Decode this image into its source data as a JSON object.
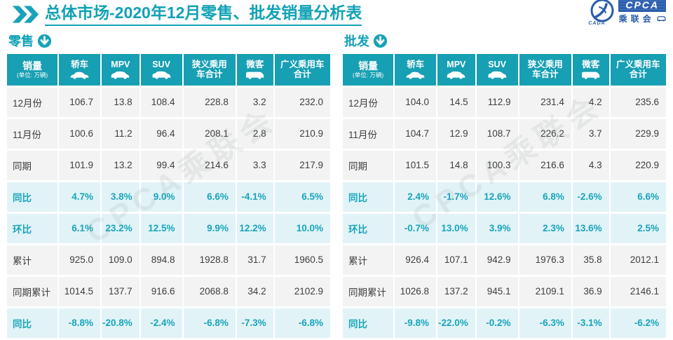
{
  "header": {
    "title_bold": "总体市场",
    "title_rest": "-2020年12月零售、批发销量分析表"
  },
  "logo": {
    "cpca": "CPCA",
    "cada": "CADA",
    "association": "乘联会"
  },
  "watermark_text": "CPCA乘联会",
  "table_meta": {
    "volume_label": "销量",
    "volume_unit": "(单位: 万辆)",
    "columns": [
      {
        "label": "轿车",
        "icon": "sedan-icon"
      },
      {
        "label": "MPV",
        "icon": "mpv-icon"
      },
      {
        "label": "SUV",
        "icon": "suv-icon"
      },
      {
        "label": "狭义乘用车合计",
        "icon": null
      },
      {
        "label": "微客",
        "icon": "minibus-icon"
      },
      {
        "label": "广义乘用车合计",
        "icon": null
      }
    ]
  },
  "chart_data": [
    {
      "type": "table",
      "key": "retail",
      "section_label": "零售",
      "rows": [
        {
          "label": "12月份",
          "kind": "num",
          "values": [
            "106.7",
            "13.8",
            "108.4",
            "228.8",
            "3.2",
            "232.0"
          ]
        },
        {
          "label": "11月份",
          "kind": "num",
          "values": [
            "100.6",
            "11.2",
            "96.4",
            "208.1",
            "2.8",
            "210.9"
          ]
        },
        {
          "label": "同期",
          "kind": "num",
          "values": [
            "101.9",
            "13.2",
            "99.4",
            "214.6",
            "3.3",
            "217.9"
          ]
        },
        {
          "label": "同比",
          "kind": "pct",
          "values": [
            "4.7%",
            "3.8%",
            "9.0%",
            "6.6%",
            "-4.1%",
            "6.5%"
          ]
        },
        {
          "label": "环比",
          "kind": "pct",
          "values": [
            "6.1%",
            "23.2%",
            "12.5%",
            "9.9%",
            "12.2%",
            "10.0%"
          ]
        },
        {
          "label": "累计",
          "kind": "num",
          "values": [
            "925.0",
            "109.0",
            "894.8",
            "1928.8",
            "31.7",
            "1960.5"
          ]
        },
        {
          "label": "同期累计",
          "kind": "num",
          "values": [
            "1014.5",
            "137.7",
            "916.6",
            "2068.8",
            "34.2",
            "2102.9"
          ]
        },
        {
          "label": "同比",
          "kind": "pct",
          "values": [
            "-8.8%",
            "-20.8%",
            "-2.4%",
            "-6.8%",
            "-7.3%",
            "-6.8%"
          ]
        }
      ]
    },
    {
      "type": "table",
      "key": "wholesale",
      "section_label": "批发",
      "rows": [
        {
          "label": "12月份",
          "kind": "num",
          "values": [
            "104.0",
            "14.5",
            "112.9",
            "231.4",
            "4.2",
            "235.6"
          ]
        },
        {
          "label": "11月份",
          "kind": "num",
          "values": [
            "104.7",
            "12.9",
            "108.7",
            "226.2",
            "3.7",
            "229.9"
          ]
        },
        {
          "label": "同期",
          "kind": "num",
          "values": [
            "101.5",
            "14.8",
            "100.3",
            "216.6",
            "4.3",
            "220.9"
          ]
        },
        {
          "label": "同比",
          "kind": "pct",
          "values": [
            "2.4%",
            "-1.7%",
            "12.6%",
            "6.8%",
            "-2.6%",
            "6.6%"
          ]
        },
        {
          "label": "环比",
          "kind": "pct",
          "values": [
            "-0.7%",
            "13.0%",
            "3.9%",
            "2.3%",
            "13.6%",
            "2.5%"
          ]
        },
        {
          "label": "累计",
          "kind": "num",
          "values": [
            "926.4",
            "107.1",
            "942.9",
            "1976.3",
            "35.8",
            "2012.1"
          ]
        },
        {
          "label": "同期累计",
          "kind": "num",
          "values": [
            "1026.8",
            "137.2",
            "945.1",
            "2109.1",
            "36.9",
            "2146.1"
          ]
        },
        {
          "label": "同比",
          "kind": "pct",
          "values": [
            "-9.8%",
            "-22.0%",
            "-0.2%",
            "-6.3%",
            "-3.1%",
            "-6.2%"
          ]
        }
      ]
    }
  ],
  "colors": {
    "teal": "#179fb3",
    "title_teal": "#11a2b6",
    "pct_row_bg": "#e2f3f8",
    "pct_text": "#18a5ba",
    "row_bg": "#f3f3f3",
    "logo_navy": "#2a5caa"
  }
}
